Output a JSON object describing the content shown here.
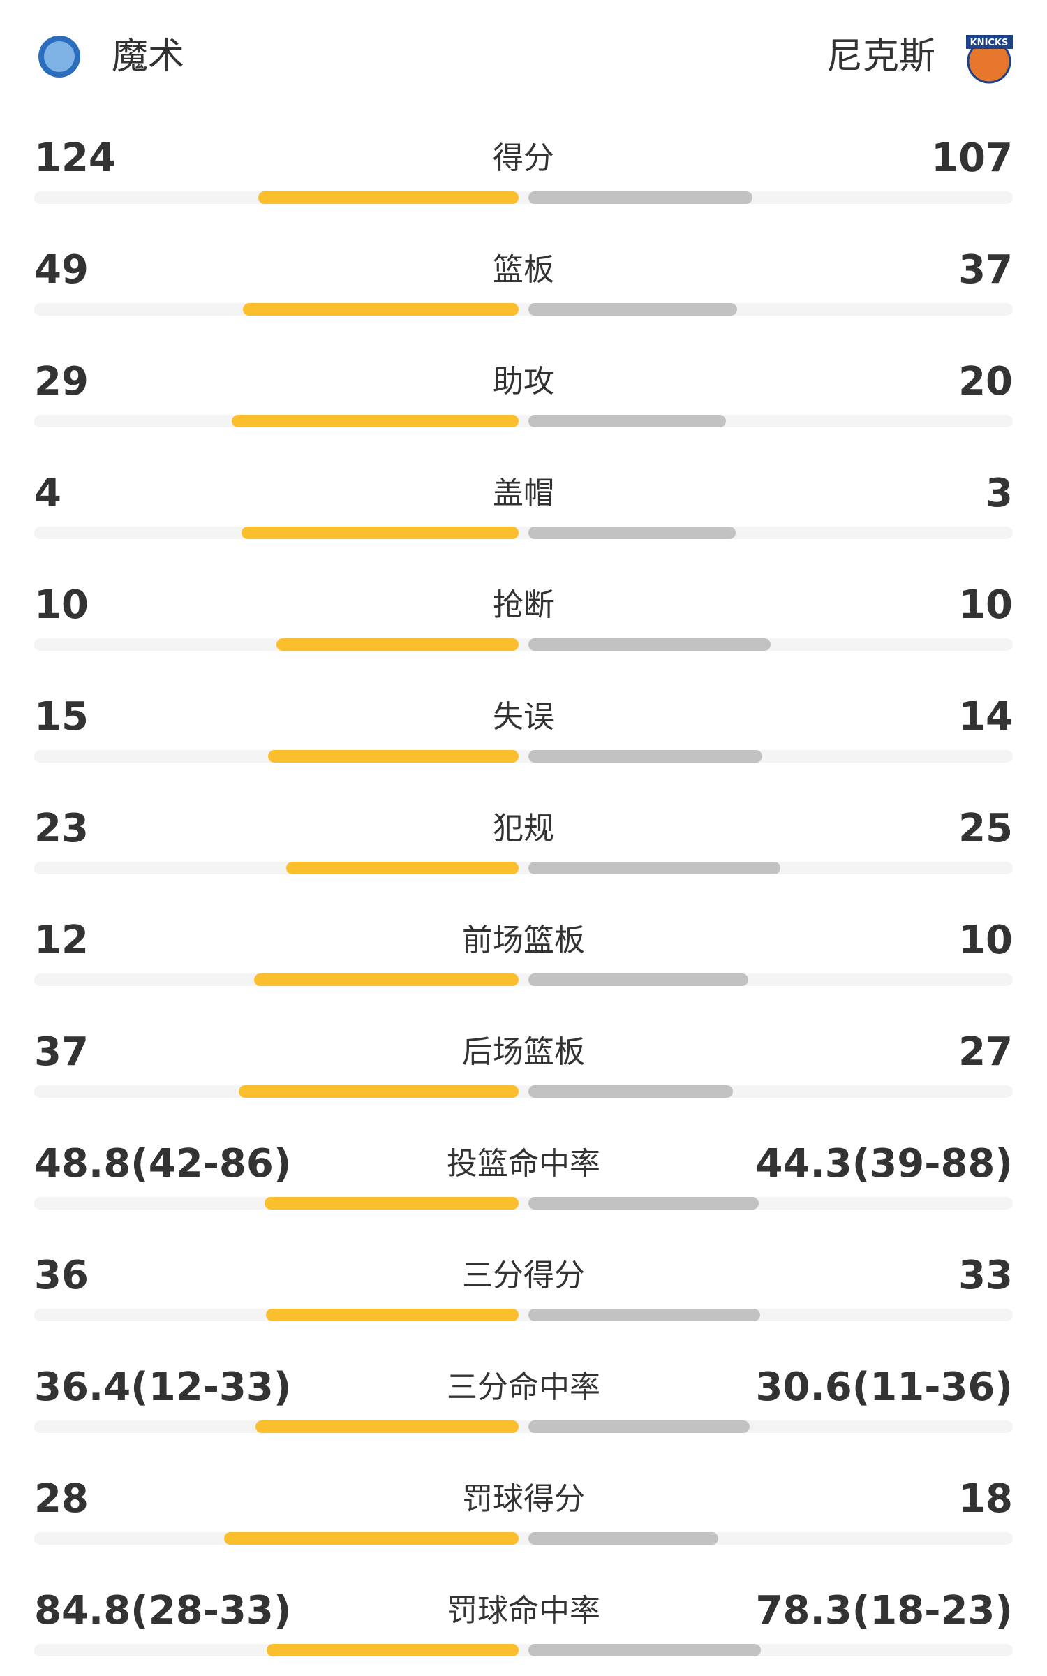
{
  "home_team": {
    "name": "魔术"
  },
  "away_team": {
    "name": "尼克斯",
    "logo_text": "KNICKS"
  },
  "home_color": "#fbbf2d",
  "away_color": "#c2c2c2",
  "stats": [
    {
      "label": "得分",
      "home": 124,
      "away": 107
    },
    {
      "label": "篮板",
      "home": 49,
      "away": 37
    },
    {
      "label": "助攻",
      "home": 29,
      "away": 20
    },
    {
      "label": "盖帽",
      "home": 4,
      "away": 3
    },
    {
      "label": "抢断",
      "home": 10,
      "away": 10
    },
    {
      "label": "失误",
      "home": 15,
      "away": 14
    },
    {
      "label": "犯规",
      "home": 23,
      "away": 25
    },
    {
      "label": "前场篮板",
      "home": 12,
      "away": 10
    },
    {
      "label": "后场篮板",
      "home": 37,
      "away": 27
    },
    {
      "label": "投篮命中率",
      "home": 48.8,
      "home_text": "48.8(42-86)",
      "away": 44.3,
      "away_text": "44.3(39-88)"
    },
    {
      "label": "三分得分",
      "home": 36,
      "away": 33
    },
    {
      "label": "三分命中率",
      "home": 36.4,
      "home_text": "36.4(12-33)",
      "away": 30.6,
      "away_text": "30.6(11-36)"
    },
    {
      "label": "罚球得分",
      "home": 28,
      "away": 18
    },
    {
      "label": "罚球命中率",
      "home": 84.8,
      "home_text": "84.8(28-33)",
      "away": 78.3,
      "away_text": "78.3(18-23)"
    }
  ]
}
